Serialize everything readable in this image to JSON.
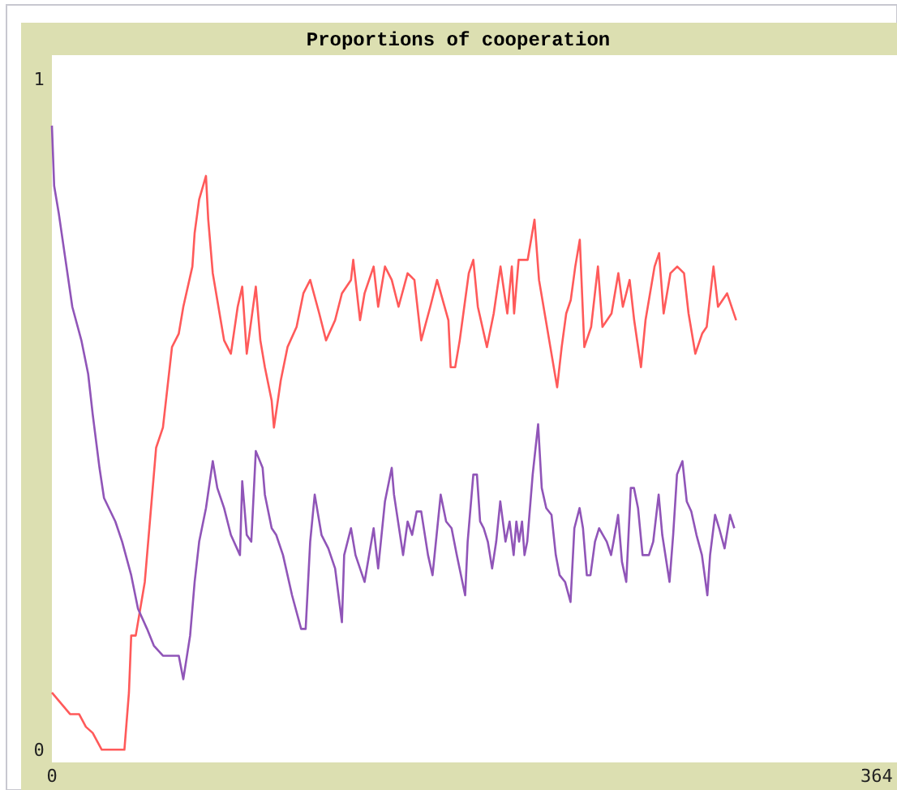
{
  "chart_data": {
    "type": "line",
    "title": "Proportions of cooperation",
    "xlim": [
      0,
      373
    ],
    "xticks": [
      0,
      364
    ],
    "ylim": [
      -0.019,
      1.035
    ],
    "yticks": [
      0,
      1
    ],
    "grid": false,
    "marker": "none",
    "line_style": "solid",
    "series": [
      {
        "color": "#ff5a5a",
        "x": [
          0,
          8,
          12,
          15,
          18,
          22,
          32,
          34,
          35,
          37,
          41,
          44,
          46,
          49,
          51,
          53,
          56,
          58,
          62,
          63,
          65,
          68,
          69,
          71,
          73,
          76,
          79,
          82,
          84,
          86,
          90,
          92,
          94,
          97,
          98,
          101,
          104,
          108,
          111,
          114,
          118,
          121,
          125,
          128,
          132,
          133,
          136,
          138,
          142,
          144,
          147,
          150,
          153,
          157,
          160,
          163,
          167,
          170,
          175,
          176,
          178,
          180,
          182,
          184,
          186,
          188,
          192,
          195,
          198,
          201,
          203,
          204,
          206,
          210,
          213,
          215,
          218,
          220,
          223,
          225,
          227,
          229,
          231,
          233,
          235,
          238,
          241,
          243,
          247,
          250,
          252,
          255,
          257,
          260,
          262,
          266,
          268,
          270,
          273,
          276,
          279,
          281,
          284,
          287,
          289,
          292,
          294,
          298,
          302
        ],
        "values": [
          0.085,
          0.053,
          0.053,
          0.034,
          0.025,
          0,
          0,
          0.085,
          0.17,
          0.17,
          0.25,
          0.37,
          0.45,
          0.48,
          0.54,
          0.6,
          0.62,
          0.66,
          0.72,
          0.77,
          0.82,
          0.855,
          0.79,
          0.71,
          0.67,
          0.61,
          0.59,
          0.66,
          0.69,
          0.59,
          0.69,
          0.61,
          0.57,
          0.52,
          0.48,
          0.55,
          0.6,
          0.63,
          0.68,
          0.7,
          0.65,
          0.61,
          0.64,
          0.68,
          0.7,
          0.73,
          0.64,
          0.68,
          0.72,
          0.66,
          0.72,
          0.7,
          0.66,
          0.71,
          0.7,
          0.61,
          0.66,
          0.7,
          0.64,
          0.57,
          0.57,
          0.61,
          0.66,
          0.71,
          0.73,
          0.66,
          0.6,
          0.65,
          0.72,
          0.65,
          0.72,
          0.65,
          0.73,
          0.73,
          0.79,
          0.7,
          0.64,
          0.6,
          0.54,
          0.6,
          0.65,
          0.67,
          0.72,
          0.76,
          0.6,
          0.63,
          0.72,
          0.63,
          0.65,
          0.71,
          0.66,
          0.7,
          0.64,
          0.57,
          0.64,
          0.72,
          0.74,
          0.65,
          0.71,
          0.72,
          0.71,
          0.65,
          0.59,
          0.62,
          0.63,
          0.72,
          0.66,
          0.68,
          0.64
        ]
      },
      {
        "color": "#9055b8",
        "x": [
          0,
          1,
          3,
          6,
          9,
          13,
          16,
          18,
          21,
          23,
          28,
          31,
          35,
          38,
          42,
          45,
          49,
          56,
          58,
          61,
          63,
          65,
          68,
          71,
          73,
          76,
          79,
          83,
          84,
          86,
          88,
          90,
          93,
          94,
          97,
          99,
          102,
          106,
          110,
          112,
          114,
          116,
          119,
          122,
          125,
          128,
          129,
          132,
          134,
          138,
          142,
          144,
          147,
          150,
          151,
          155,
          157,
          159,
          161,
          163,
          166,
          168,
          171.6,
          174,
          176.4,
          178.7,
          182.4,
          183.5,
          186,
          187.6,
          189,
          190.6,
          192.4,
          194.3,
          196.1,
          197.9,
          200.2,
          202,
          203.8,
          205,
          206.2,
          207.5,
          208.6,
          209.8,
          212.2,
          214.6,
          216.2,
          218.2,
          220.5,
          222.4,
          224.1,
          226.5,
          228.9,
          230.6,
          232.9,
          234.4,
          236.1,
          237.7,
          239.7,
          241.5,
          243.2,
          244.9,
          246.8,
          247.9,
          249.9,
          251.6,
          253.5,
          255.5,
          256.9,
          258.7,
          260.7,
          263.5,
          265.4,
          267.8,
          269.4,
          272.6,
          274.2,
          275.9,
          278.3,
          280.2,
          282.2,
          284.5,
          286.9,
          289.3,
          290.5,
          292.7,
          294.5,
          296.9,
          299.3,
          301.2
        ],
        "values": [
          0.93,
          0.84,
          0.8,
          0.73,
          0.66,
          0.61,
          0.56,
          0.5,
          0.42,
          0.375,
          0.34,
          0.31,
          0.26,
          0.21,
          0.18,
          0.155,
          0.14,
          0.14,
          0.105,
          0.17,
          0.25,
          0.31,
          0.36,
          0.43,
          0.39,
          0.36,
          0.32,
          0.29,
          0.4,
          0.32,
          0.31,
          0.445,
          0.42,
          0.38,
          0.33,
          0.32,
          0.29,
          0.23,
          0.18,
          0.18,
          0.31,
          0.38,
          0.32,
          0.3,
          0.27,
          0.19,
          0.29,
          0.33,
          0.29,
          0.25,
          0.33,
          0.27,
          0.37,
          0.42,
          0.38,
          0.29,
          0.34,
          0.32,
          0.355,
          0.355,
          0.29,
          0.26,
          0.38,
          0.34,
          0.33,
          0.29,
          0.23,
          0.31,
          0.41,
          0.41,
          0.34,
          0.33,
          0.31,
          0.27,
          0.31,
          0.37,
          0.31,
          0.34,
          0.29,
          0.34,
          0.31,
          0.34,
          0.29,
          0.31,
          0.41,
          0.485,
          0.39,
          0.36,
          0.35,
          0.29,
          0.26,
          0.25,
          0.22,
          0.33,
          0.36,
          0.33,
          0.26,
          0.26,
          0.31,
          0.33,
          0.32,
          0.31,
          0.29,
          0.31,
          0.35,
          0.28,
          0.25,
          0.39,
          0.39,
          0.36,
          0.29,
          0.29,
          0.31,
          0.38,
          0.32,
          0.25,
          0.32,
          0.41,
          0.43,
          0.37,
          0.355,
          0.32,
          0.29,
          0.23,
          0.29,
          0.35,
          0.33,
          0.3,
          0.35,
          0.33
        ]
      }
    ]
  }
}
